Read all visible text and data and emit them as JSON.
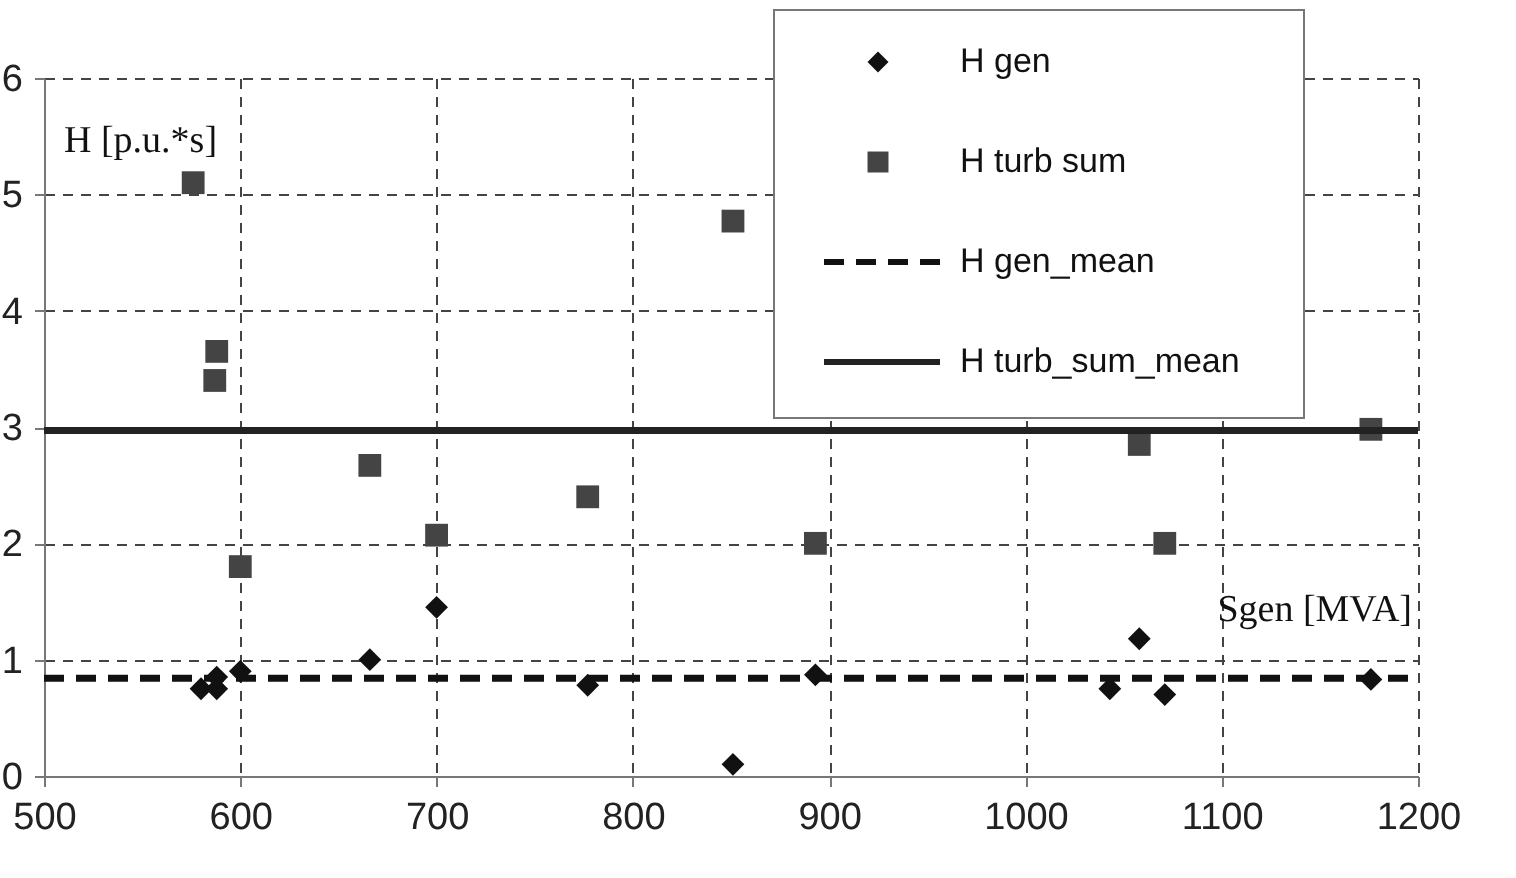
{
  "chart_data": {
    "type": "scatter",
    "xlabel": "Sgen [MVA]",
    "ylabel": "H [p.u.*s]",
    "xlim": [
      500,
      1200
    ],
    "xticks": [
      500,
      600,
      700,
      800,
      900,
      1000,
      1100,
      1200
    ],
    "ylim": [
      0,
      6
    ],
    "yticks": [
      0,
      1,
      2,
      3,
      4,
      5,
      6
    ],
    "grid": true,
    "legend": "top right",
    "series": [
      {
        "name": "H gen",
        "color": "#111111",
        "marker": "diamond",
        "x": [
          580,
          588,
          588,
          600,
          666,
          700,
          777,
          851,
          893,
          1043,
          1058,
          1071,
          1176
        ],
        "values": [
          0.75,
          0.75,
          0.85,
          0.9,
          1.0,
          1.45,
          0.78,
          0.1,
          0.87,
          0.75,
          1.18,
          0.7,
          0.83
        ]
      },
      {
        "name": "H  turb sum",
        "color": "#444444",
        "marker": "square",
        "x": [
          576,
          588,
          587,
          600,
          666,
          700,
          777,
          851,
          893,
          1058,
          1071,
          1176
        ],
        "values": [
          5.1,
          3.65,
          3.4,
          1.8,
          2.67,
          2.07,
          2.4,
          4.77,
          2.0,
          2.85,
          2.0,
          2.98
        ]
      },
      {
        "name": "H gen_mean",
        "type": "line",
        "color": "#111111",
        "line_style": "dashed",
        "marker": "none",
        "x": [
          500,
          1200
        ],
        "values": [
          0.84,
          0.84
        ]
      },
      {
        "name": "H turb_sum_mean",
        "type": "line",
        "color": "#222222",
        "line_style": "solid",
        "marker": "none",
        "x": [
          500,
          1200
        ],
        "values": [
          2.97,
          2.97
        ]
      }
    ]
  }
}
